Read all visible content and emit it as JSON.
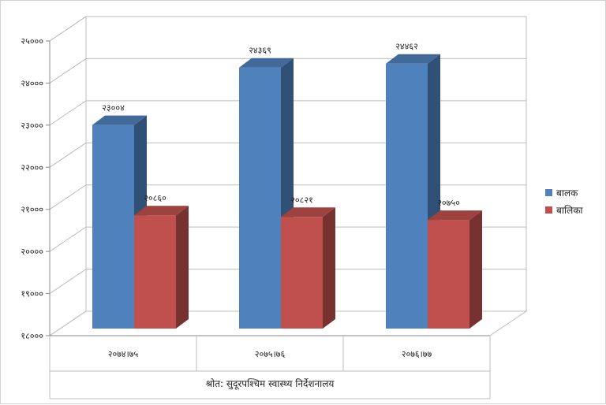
{
  "chart_data": {
    "type": "bar",
    "categories": [
      "२०७४।७५",
      "२०७५।७६",
      "२०७६।७७"
    ],
    "series": [
      {
        "name": "बालक",
        "values": [
          23004,
          24369,
          24462
        ],
        "labels": [
          "२३००४",
          "२४३६९",
          "२४४६२"
        ],
        "color": "#4f81bd"
      },
      {
        "name": "बालिका",
        "values": [
          20860,
          20821,
          20750
        ],
        "labels": [
          "२०८६०",
          "२०८२१",
          "२०७५०"
        ],
        "color": "#c0504d"
      }
    ],
    "ylim": [
      18000,
      25000
    ],
    "yticks": [
      {
        "value": 18000,
        "label": "१८०००"
      },
      {
        "value": 19000,
        "label": "१९०००"
      },
      {
        "value": 20000,
        "label": "२००००"
      },
      {
        "value": 21000,
        "label": "२१०००"
      },
      {
        "value": 22000,
        "label": "२२०००"
      },
      {
        "value": 23000,
        "label": "२३०००"
      },
      {
        "value": 24000,
        "label": "२४०००"
      },
      {
        "value": 25000,
        "label": "२५०००"
      }
    ],
    "grid": true,
    "legend_position": "right",
    "source_note": "श्रोत: सुदूरपश्चिम स्वास्थ्य निर्देशनालय"
  }
}
